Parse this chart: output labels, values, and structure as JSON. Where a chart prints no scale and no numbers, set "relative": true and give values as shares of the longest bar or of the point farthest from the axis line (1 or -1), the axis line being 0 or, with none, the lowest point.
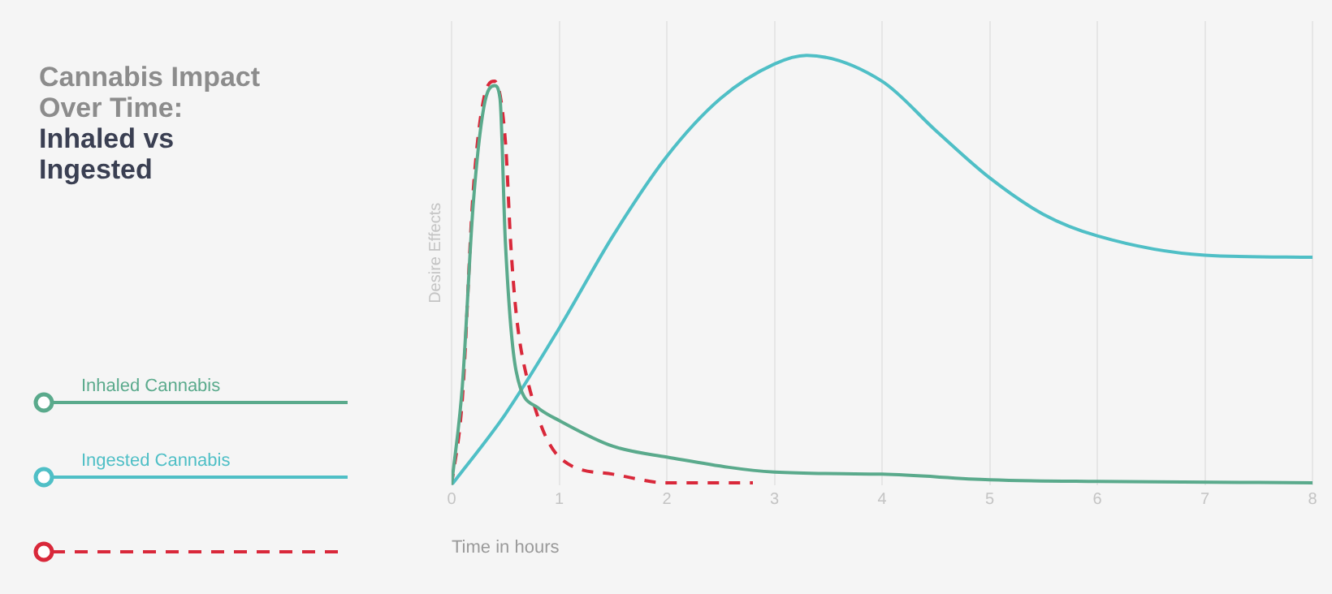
{
  "chart_data": {
    "type": "line",
    "title": "Cannabis Impact Over Time:",
    "subtitle": "Inhaled vs Ingested",
    "xlabel": "Time in hours",
    "ylabel": "Desire Effects",
    "relative": true,
    "xlim": [
      0,
      8
    ],
    "xticks": [
      0,
      1,
      2,
      3,
      4,
      5,
      6,
      7,
      8
    ],
    "grid": "x",
    "legend": "left",
    "marker": "none",
    "series": [
      {
        "name": "Inhaled Cannabis",
        "color": "#5aaa8c",
        "x": [
          0,
          0.1,
          0.2,
          0.3,
          0.4,
          0.45,
          0.5,
          0.6,
          0.8,
          1,
          1.5,
          2,
          3,
          4,
          5,
          6,
          8
        ],
        "values": [
          0,
          0.23,
          0.65,
          0.88,
          0.93,
          0.9,
          0.565,
          0.265,
          0.18,
          0.15,
          0.09,
          0.065,
          0.03,
          0.025,
          0.012,
          0.008,
          0.005
        ]
      },
      {
        "name": "Ingested Cannabis",
        "color": "#4fbfc6",
        "x": [
          0,
          0.5,
          1,
          1.5,
          2,
          2.5,
          3,
          3.3,
          4,
          4.5,
          5,
          5.5,
          6,
          7,
          8
        ],
        "values": [
          0,
          0.165,
          0.365,
          0.58,
          0.765,
          0.9,
          0.98,
          1,
          0.94,
          0.825,
          0.715,
          0.63,
          0.58,
          0.535,
          0.53
        ]
      },
      {
        "color": "#d9283a",
        "line_style": "dashed",
        "x": [
          0,
          0.1,
          0.2,
          0.3,
          0.4,
          0.5,
          0.55,
          0.6,
          0.7,
          1,
          1.5,
          2,
          2.8
        ],
        "values": [
          0,
          0.2,
          0.68,
          0.9,
          0.94,
          0.8,
          0.56,
          0.4,
          0.25,
          0.065,
          0.025,
          0.005,
          0.005
        ]
      }
    ]
  }
}
